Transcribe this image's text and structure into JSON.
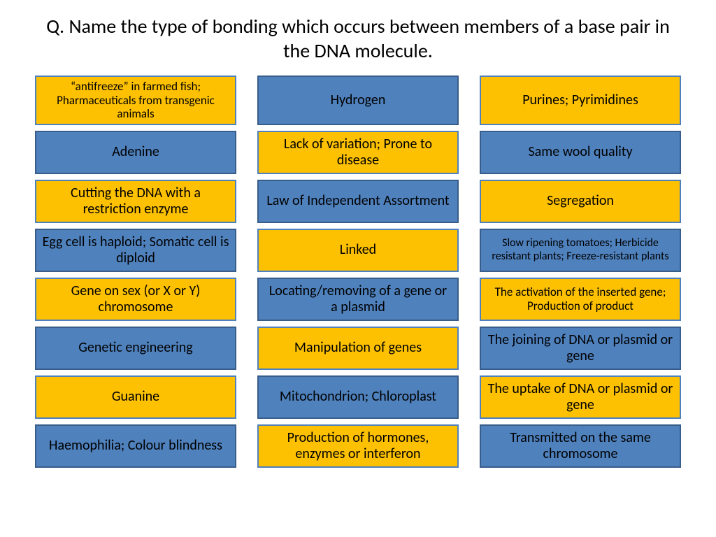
{
  "question": "Q. Name the type of bonding which occurs between members of a base pair in the DNA molecule.",
  "palette": {
    "blue_bg": "#4f81bd",
    "blue_border": "#385d8a",
    "blue_text": "#000000",
    "orange_bg": "#fdc102",
    "orange_border": "#4f81bd",
    "orange_text": "#000000"
  },
  "card_fontsize_default": 20,
  "cards": [
    {
      "text": "“antifreeze” in farmed fish; Pharmaceuticals from transgenic animals",
      "style": "orange",
      "fontsize": 17
    },
    {
      "text": "Hydrogen",
      "style": "blue",
      "fontsize": 20
    },
    {
      "text": "Purines; Pyrimidines",
      "style": "orange",
      "fontsize": 20
    },
    {
      "text": "Adenine",
      "style": "blue",
      "fontsize": 20
    },
    {
      "text": "Lack of variation; Prone to disease",
      "style": "orange",
      "fontsize": 20
    },
    {
      "text": "Same wool quality",
      "style": "blue",
      "fontsize": 20
    },
    {
      "text": "Cutting the DNA with a restriction enzyme",
      "style": "orange",
      "fontsize": 20
    },
    {
      "text": "Law of Independent Assortment",
      "style": "blue",
      "fontsize": 20
    },
    {
      "text": "Segregation",
      "style": "orange",
      "fontsize": 20
    },
    {
      "text": "Egg cell is haploid; Somatic cell is diploid",
      "style": "blue",
      "fontsize": 20
    },
    {
      "text": "Linked",
      "style": "orange",
      "fontsize": 20
    },
    {
      "text": "Slow ripening tomatoes; Herbicide resistant plants; Freeze-resistant plants",
      "style": "blue",
      "fontsize": 16
    },
    {
      "text": "Gene on sex (or X or Y) chromosome",
      "style": "orange",
      "fontsize": 20
    },
    {
      "text": "Locating/removing of a gene or a plasmid",
      "style": "blue",
      "fontsize": 20
    },
    {
      "text": "The activation of the inserted gene; Production of product",
      "style": "orange",
      "fontsize": 17
    },
    {
      "text": "Genetic engineering",
      "style": "blue",
      "fontsize": 20
    },
    {
      "text": "Manipulation of genes",
      "style": "orange",
      "fontsize": 20
    },
    {
      "text": "The joining of DNA or plasmid or gene",
      "style": "blue",
      "fontsize": 20
    },
    {
      "text": "Guanine",
      "style": "orange",
      "fontsize": 20
    },
    {
      "text": "Mitochondrion; Chloroplast",
      "style": "blue",
      "fontsize": 20
    },
    {
      "text": "The uptake of DNA or plasmid or gene",
      "style": "orange",
      "fontsize": 20
    },
    {
      "text": "Haemophilia; Colour blindness",
      "style": "blue",
      "fontsize": 20
    },
    {
      "text": "Production of hormones, enzymes or interferon",
      "style": "orange",
      "fontsize": 20
    },
    {
      "text": "Transmitted on the same chromosome",
      "style": "blue",
      "fontsize": 20
    }
  ]
}
